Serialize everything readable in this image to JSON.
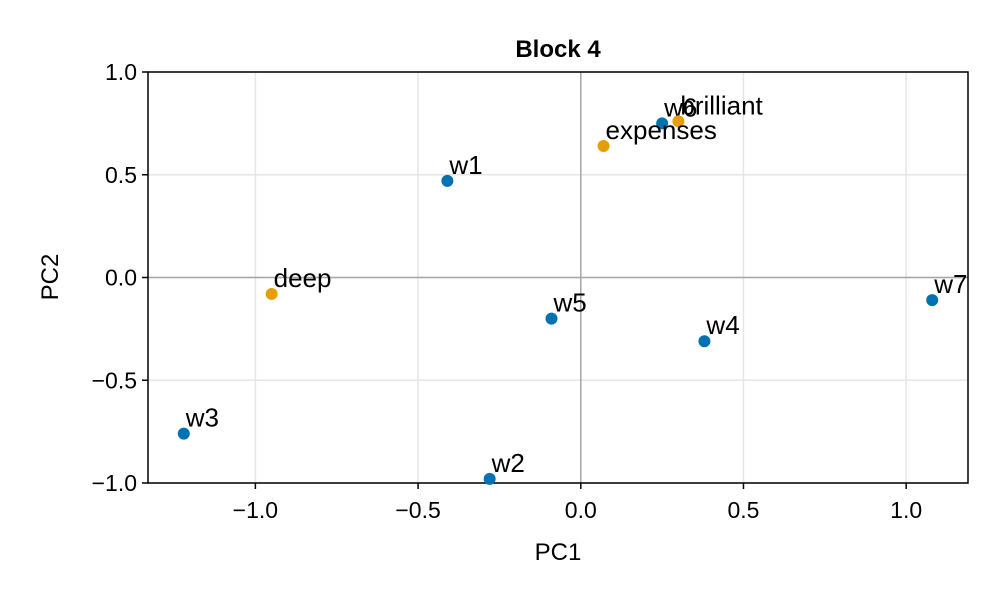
{
  "chart_data": {
    "type": "scatter",
    "title": "Block 4",
    "xlabel": "PC1",
    "ylabel": "PC2",
    "xlim": [
      -1.33,
      1.19
    ],
    "ylim": [
      -1.0,
      1.0
    ],
    "xticks": [
      -1.0,
      -0.5,
      0.0,
      0.5,
      1.0
    ],
    "xtick_labels": [
      "−1.0",
      "−0.5",
      "0.0",
      "0.5",
      "1.0"
    ],
    "yticks": [
      -1.0,
      -0.5,
      0.0,
      0.5,
      1.0
    ],
    "ytick_labels": [
      "−1.0",
      "−0.5",
      "0.0",
      "0.5",
      "1.0"
    ],
    "grid": true,
    "zero_lines": true,
    "series": [
      {
        "color": "#0072b2",
        "points": [
          {
            "label": "w1",
            "x": -0.41,
            "y": 0.47
          },
          {
            "label": "w2",
            "x": -0.28,
            "y": -0.98
          },
          {
            "label": "w3",
            "x": -1.22,
            "y": -0.76
          },
          {
            "label": "w4",
            "x": 0.38,
            "y": -0.31
          },
          {
            "label": "w5",
            "x": -0.09,
            "y": -0.2
          },
          {
            "label": "w6",
            "x": 0.25,
            "y": 0.75
          },
          {
            "label": "w7",
            "x": 1.08,
            "y": -0.11
          }
        ]
      },
      {
        "color": "#e69f00",
        "points": [
          {
            "label": "brilliant",
            "x": 0.3,
            "y": 0.76
          },
          {
            "label": "expenses",
            "x": 0.07,
            "y": 0.64
          },
          {
            "label": "deep",
            "x": -0.95,
            "y": -0.08
          }
        ]
      }
    ]
  }
}
